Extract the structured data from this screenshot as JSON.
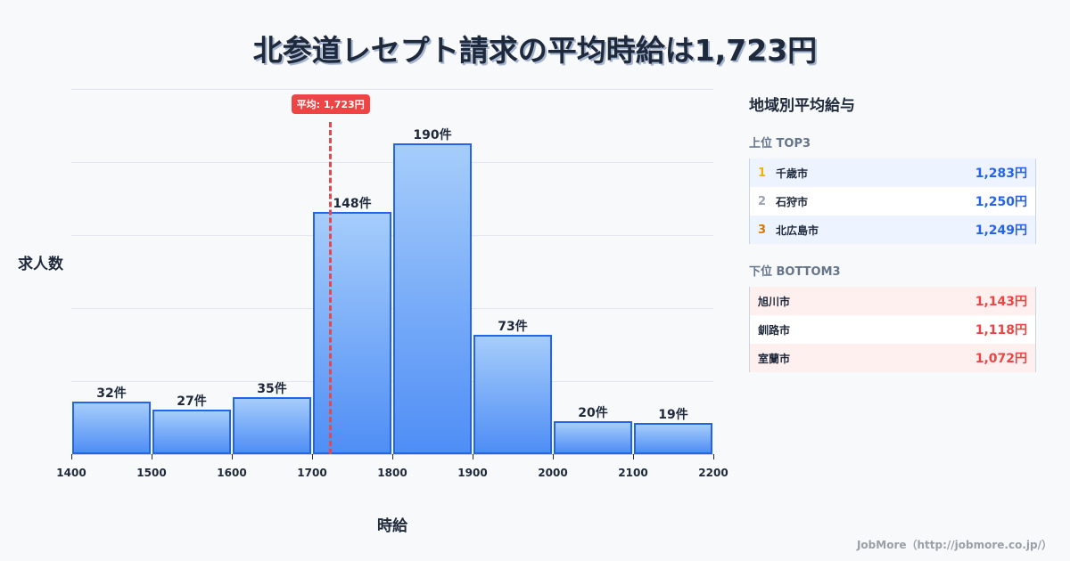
{
  "title": "北参道レセプト請求の平均時給は1,723円",
  "chart_data": {
    "type": "bar",
    "title": "北参道レセプト請求の平均時給は1,723円",
    "xlabel": "時給",
    "ylabel": "求人数",
    "bins": [
      [
        1400,
        1500
      ],
      [
        1500,
        1600
      ],
      [
        1600,
        1700
      ],
      [
        1700,
        1800
      ],
      [
        1800,
        1900
      ],
      [
        1900,
        2000
      ],
      [
        2000,
        2100
      ],
      [
        2100,
        2200
      ]
    ],
    "categories": [
      "1400-1500",
      "1500-1600",
      "1600-1700",
      "1700-1800",
      "1800-1900",
      "1900-2000",
      "2000-2100",
      "2100-2200"
    ],
    "values": [
      32,
      27,
      35,
      148,
      190,
      73,
      20,
      19
    ],
    "value_labels": [
      "32件",
      "27件",
      "35件",
      "148件",
      "190件",
      "73件",
      "20件",
      "19件"
    ],
    "x_ticks": [
      "1400",
      "1500",
      "1600",
      "1700",
      "1800",
      "1900",
      "2000",
      "2100",
      "2200"
    ],
    "xlim": [
      1400,
      2200
    ],
    "ylim": [
      0,
      223
    ],
    "grid": true,
    "mean": 1723,
    "mean_label": "平均: 1,723円",
    "colors": {
      "bar_border": "#2563eb",
      "bar_top": "#a6cdfb",
      "bar_bottom": "#4f8ef5",
      "mean_line": "#e5484d"
    }
  },
  "sidebar": {
    "title": "地域別平均給与",
    "top": {
      "heading": "上位 TOP3",
      "rows": [
        {
          "rank": "1",
          "name": "千歳市",
          "value": "1,283円",
          "rank_color": "#eab308"
        },
        {
          "rank": "2",
          "name": "石狩市",
          "value": "1,250円",
          "rank_color": "#9ca3af"
        },
        {
          "rank": "3",
          "name": "北広島市",
          "value": "1,249円",
          "rank_color": "#d97706"
        }
      ]
    },
    "bottom": {
      "heading": "下位 BOTTOM3",
      "rows": [
        {
          "name": "旭川市",
          "value": "1,143円"
        },
        {
          "name": "釧路市",
          "value": "1,118円"
        },
        {
          "name": "室蘭市",
          "value": "1,072円"
        }
      ]
    }
  },
  "footer": "JobMore（http://jobmore.co.jp/）"
}
